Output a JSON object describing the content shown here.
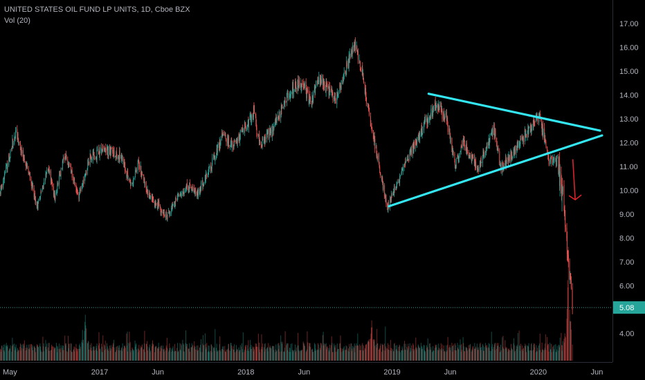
{
  "legend": {
    "title": "UNITED STATES OIL FUND LP UNITS, 1D, Cboe BZX",
    "volume": "Vol (20)"
  },
  "colors": {
    "background": "#000000",
    "up": "#26a69a",
    "down": "#ef5350",
    "trendline": "#33e6f2",
    "arrow": "#d8232a",
    "price_line": "#26a69a",
    "axis_text": "#b2b5be"
  },
  "chart_data": {
    "type": "candlestick",
    "y_axis": {
      "range": [
        2.85,
        17.75
      ],
      "ticks": [
        "4.00",
        "5.00",
        "6.00",
        "7.00",
        "8.00",
        "9.00",
        "10.00",
        "11.00",
        "12.00",
        "13.00",
        "14.00",
        "15.00",
        "16.00",
        "17.00"
      ]
    },
    "x_axis": {
      "range": [
        "2016-05-01",
        "2020-07-08"
      ],
      "ticks": [
        {
          "date": "2016-05-01",
          "label": "May"
        },
        {
          "date": "2017-01-01",
          "label": "2017"
        },
        {
          "date": "2017-06-01",
          "label": "Jun"
        },
        {
          "date": "2018-01-01",
          "label": "2018"
        },
        {
          "date": "2018-06-01",
          "label": "Jun"
        },
        {
          "date": "2019-01-01",
          "label": "2019"
        },
        {
          "date": "2019-06-01",
          "label": "Jun"
        },
        {
          "date": "2020-01-01",
          "label": "2020"
        },
        {
          "date": "2020-06-01",
          "label": "Jun"
        }
      ]
    },
    "current_price": {
      "value": 5.08,
      "label": "5.08"
    },
    "price_path": [
      [
        "2016-05-01",
        9.9
      ],
      [
        "2016-06-08",
        12.4
      ],
      [
        "2016-07-01",
        11.4
      ],
      [
        "2016-08-03",
        9.3
      ],
      [
        "2016-08-29",
        11.0
      ],
      [
        "2016-09-15",
        9.7
      ],
      [
        "2016-10-10",
        11.5
      ],
      [
        "2016-11-14",
        9.8
      ],
      [
        "2016-12-12",
        11.4
      ],
      [
        "2017-01-20",
        11.7
      ],
      [
        "2017-03-01",
        11.4
      ],
      [
        "2017-03-25",
        10.1
      ],
      [
        "2017-04-12",
        11.2
      ],
      [
        "2017-05-04",
        9.9
      ],
      [
        "2017-06-22",
        8.9
      ],
      [
        "2017-07-10",
        9.5
      ],
      [
        "2017-08-15",
        10.2
      ],
      [
        "2017-09-05",
        9.8
      ],
      [
        "2017-09-28",
        10.6
      ],
      [
        "2017-11-06",
        12.2
      ],
      [
        "2017-12-08",
        11.9
      ],
      [
        "2018-01-24",
        13.3
      ],
      [
        "2018-02-09",
        11.9
      ],
      [
        "2018-03-15",
        12.6
      ],
      [
        "2018-04-20",
        14.0
      ],
      [
        "2018-05-22",
        14.6
      ],
      [
        "2018-06-18",
        13.6
      ],
      [
        "2018-07-03",
        14.8
      ],
      [
        "2018-08-15",
        13.8
      ],
      [
        "2018-10-03",
        16.1
      ],
      [
        "2018-10-20",
        15.1
      ],
      [
        "2018-11-15",
        12.6
      ],
      [
        "2018-12-24",
        9.3
      ],
      [
        "2019-01-15",
        10.2
      ],
      [
        "2019-02-20",
        11.6
      ],
      [
        "2019-04-23",
        13.6
      ],
      [
        "2019-05-20",
        13.0
      ],
      [
        "2019-06-12",
        11.0
      ],
      [
        "2019-07-01",
        12.1
      ],
      [
        "2019-08-07",
        10.9
      ],
      [
        "2019-09-16",
        12.6
      ],
      [
        "2019-10-03",
        10.9
      ],
      [
        "2019-11-15",
        11.9
      ],
      [
        "2019-12-20",
        12.7
      ],
      [
        "2020-01-07",
        13.2
      ],
      [
        "2020-01-31",
        11.2
      ],
      [
        "2020-02-20",
        11.3
      ],
      [
        "2020-03-09",
        9.4
      ],
      [
        "2020-03-18",
        7.3
      ],
      [
        "2020-03-24",
        6.4
      ],
      [
        "2020-03-30",
        5.1
      ]
    ],
    "volume_spikes": [
      [
        "2016-11-30",
        0.9
      ],
      [
        "2018-11-15",
        0.8
      ],
      [
        "2020-03-20",
        3.0
      ]
    ],
    "annotations": {
      "trendlines": [
        {
          "from": [
            "2019-04-06",
            14.05
          ],
          "to": [
            "2020-06-07",
            12.5
          ]
        },
        {
          "from": [
            "2018-12-28",
            9.33
          ],
          "to": [
            "2020-06-12",
            12.3
          ]
        }
      ],
      "arrow": {
        "from": [
          "2020-03-31",
          11.3
        ],
        "to": [
          "2020-04-06",
          9.6
        ]
      }
    }
  }
}
